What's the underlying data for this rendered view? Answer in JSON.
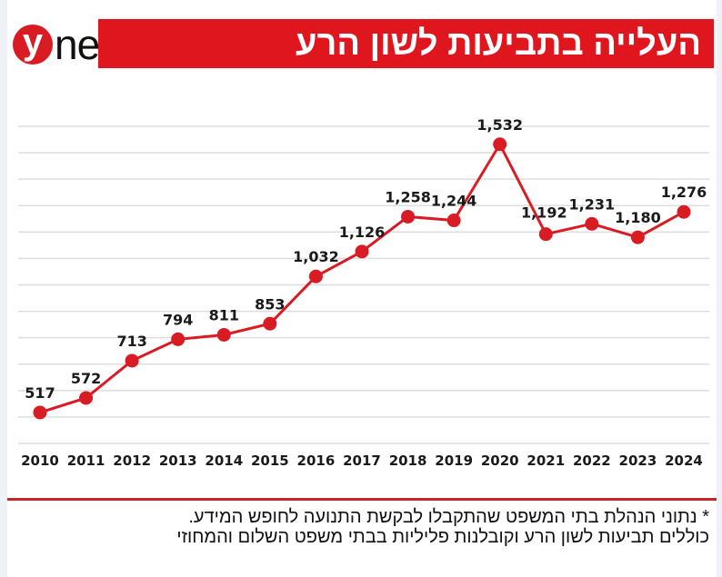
{
  "logo": {
    "mark": "y",
    "text": "net"
  },
  "title": "העלייה בתביעות לשון הרע",
  "footnote": [
    "* נתוני הנהלת בתי המשפט שהתקבלו לבקשת התנועה לחופש המידע.",
    "כוללים תביעות לשון הרע וקובלנות פליליות בבתי משפט השלום והמחוזי"
  ],
  "colors": {
    "accent": "#e0161e",
    "line": "#d91c24",
    "grid": "#dddddd"
  },
  "chart_data": {
    "type": "line",
    "x": [
      "2010",
      "2011",
      "2012",
      "2013",
      "2014",
      "2015",
      "2016",
      "2017",
      "2018",
      "2019",
      "2020",
      "2021",
      "2022",
      "2023",
      "2024"
    ],
    "values": [
      517,
      572,
      713,
      794,
      811,
      853,
      1032,
      1126,
      1258,
      1244,
      1532,
      1192,
      1231,
      1180,
      1276
    ],
    "labels": [
      "517",
      "572",
      "713",
      "794",
      "811",
      "853",
      "1,032",
      "1,126",
      "1,258",
      "1,244",
      "1,532",
      "1,192",
      "1,231",
      "1,180",
      "1,276"
    ],
    "ylim": [
      400,
      1600
    ],
    "grid": true,
    "grid_step": 100,
    "y_tick_labels_shown": false
  }
}
